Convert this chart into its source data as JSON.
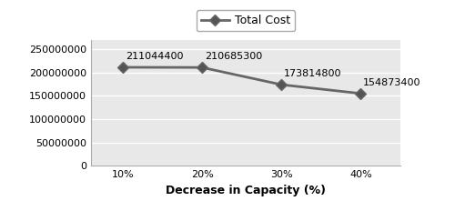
{
  "x_labels": [
    "10%",
    "20%",
    "30%",
    "40%"
  ],
  "x_values": [
    1,
    2,
    3,
    4
  ],
  "y_values": [
    211044400,
    210685300,
    173814800,
    154873400
  ],
  "annotations": [
    "211044400",
    "210685300",
    "173814800",
    "154873400"
  ],
  "line_color": "#666666",
  "marker": "D",
  "marker_size": 6,
  "marker_facecolor": "#555555",
  "legend_label": "Total Cost",
  "xlabel": "Decrease in Capacity (%)",
  "ylim": [
    0,
    270000000
  ],
  "yticks": [
    0,
    50000000,
    100000000,
    150000000,
    200000000,
    250000000
  ],
  "ytick_labels": [
    "0",
    "50000000",
    "100000000",
    "150000000",
    "200000000",
    "250000000"
  ],
  "background_color": "#e8e8e8",
  "grid_color": "#ffffff",
  "label_fontsize": 9,
  "annotation_fontsize": 8,
  "legend_fontsize": 9,
  "tick_fontsize": 8
}
